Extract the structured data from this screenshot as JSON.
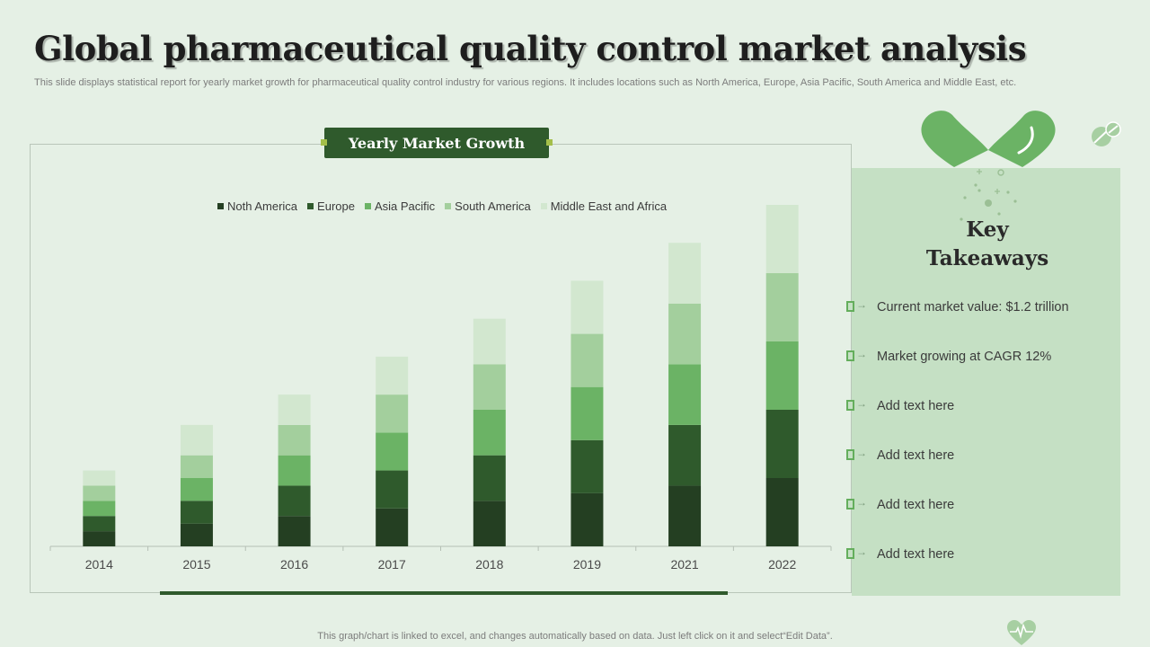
{
  "header": {
    "title": "Global pharmaceutical quality control market analysis",
    "subtitle": "This slide displays statistical report for yearly  market growth for pharmaceutical quality control industry for various regions. It includes locations such as North America, Europe, Asia Pacific, South America and Middle East, etc."
  },
  "chart_badge": "Yearly Market Growth",
  "chart_data": {
    "type": "bar",
    "stacked": true,
    "title": "Yearly Market Growth",
    "categories": [
      "2014",
      "2015",
      "2016",
      "2017",
      "2018",
      "2019",
      "2021",
      "2022"
    ],
    "series": [
      {
        "name": "Noth America",
        "color": "#243f22",
        "values": [
          1,
          1.5,
          2,
          2.5,
          3,
          3.5,
          4,
          4.5
        ]
      },
      {
        "name": "Europe",
        "color": "#2f5a2c",
        "values": [
          1,
          1.5,
          2,
          2.5,
          3,
          3.5,
          4,
          4.5
        ]
      },
      {
        "name": "Asia Pacific",
        "color": "#6bb365",
        "values": [
          1,
          1.5,
          2,
          2.5,
          3,
          3.5,
          4,
          4.5
        ]
      },
      {
        "name": "South America",
        "color": "#a3cf9d",
        "values": [
          1,
          1.5,
          2,
          2.5,
          3,
          3.5,
          4,
          4.5
        ]
      },
      {
        "name": "Middle East and Africa",
        "color": "#d2e7cf",
        "values": [
          1,
          2,
          2,
          2.5,
          3,
          3.5,
          4,
          4.5
        ]
      }
    ],
    "ylim": [
      0,
      22.5
    ],
    "legend_position": "top",
    "grid": false
  },
  "key_takeaways": {
    "title_line1": "Key",
    "title_line2": "Takeaways",
    "items": [
      "Current market value:  $1.2 trillion",
      "Market  growing at CAGR 12%",
      "Add text here",
      "Add text here",
      "Add text here",
      "Add text here"
    ]
  },
  "footer": "This graph/chart is linked to excel,  and changes automatically based on data. Just left click on it and select“Edit Data”."
}
